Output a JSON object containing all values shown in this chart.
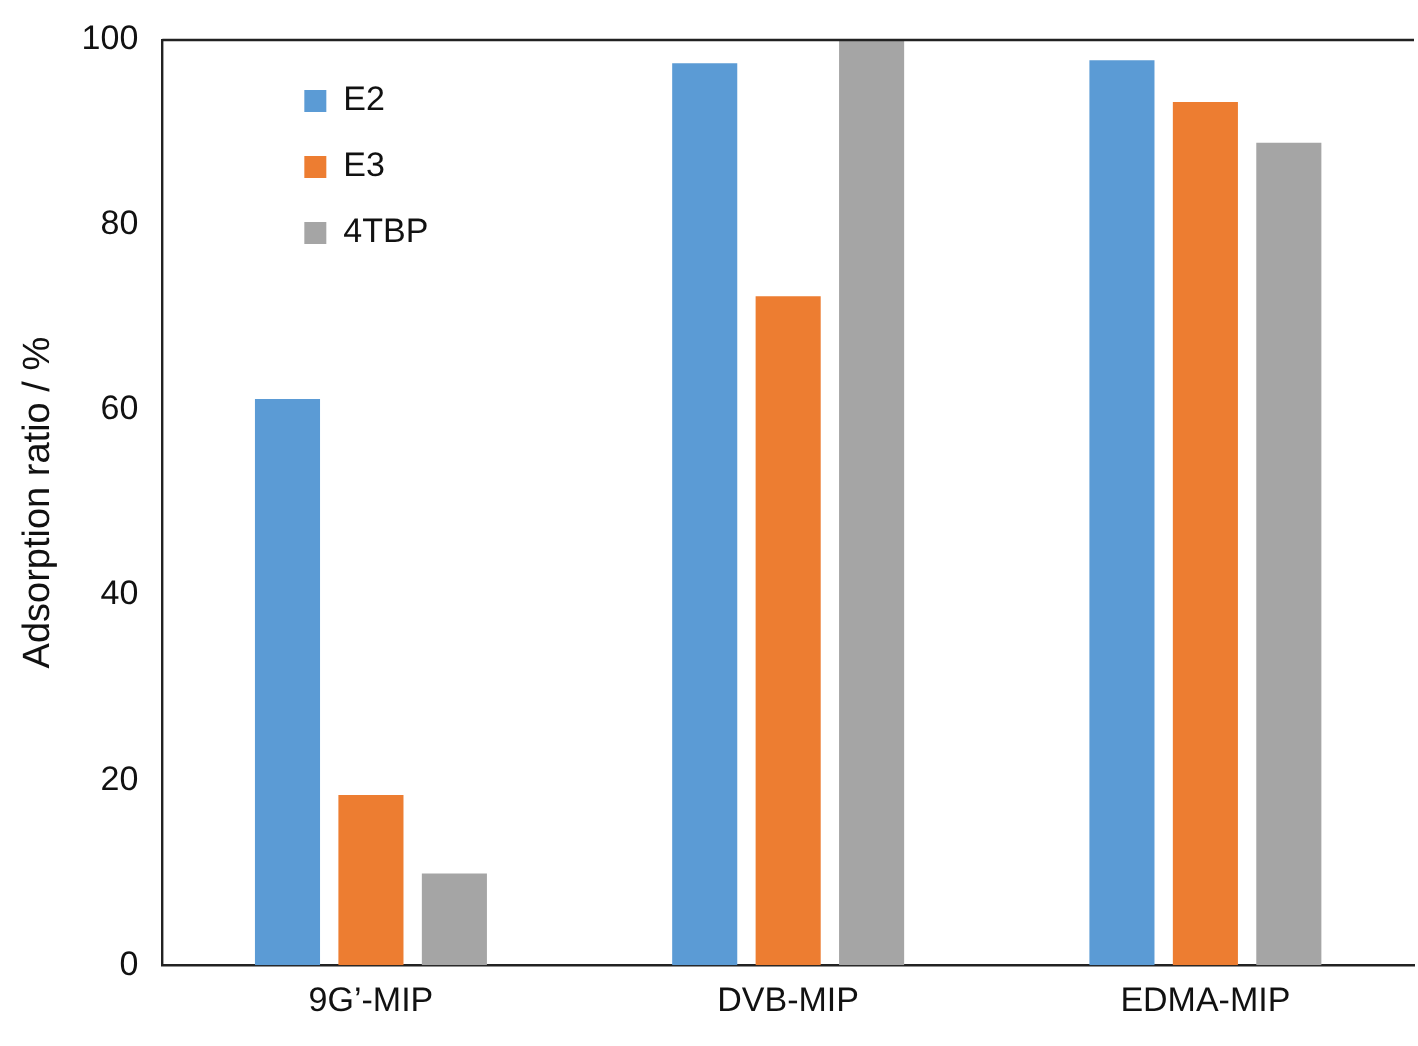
{
  "chart_data": {
    "type": "bar",
    "ylabel": "Adsorption ratio / %",
    "categories": [
      "9G’-MIP",
      "DVB-MIP",
      "EDMA-MIP"
    ],
    "series": [
      {
        "name": "E2",
        "color": "#5b9bd5",
        "values": [
          61.2,
          97.5,
          97.8
        ]
      },
      {
        "name": "E3",
        "color": "#ed7d31",
        "values": [
          18.4,
          72.3,
          93.3
        ]
      },
      {
        "name": "4TBP",
        "color": "#a5a5a5",
        "values": [
          9.9,
          100,
          88.9
        ]
      }
    ],
    "ylim": [
      0,
      100
    ],
    "yticks": [
      0,
      20,
      40,
      60,
      80,
      100
    ],
    "grid": false,
    "legend": "top left"
  }
}
